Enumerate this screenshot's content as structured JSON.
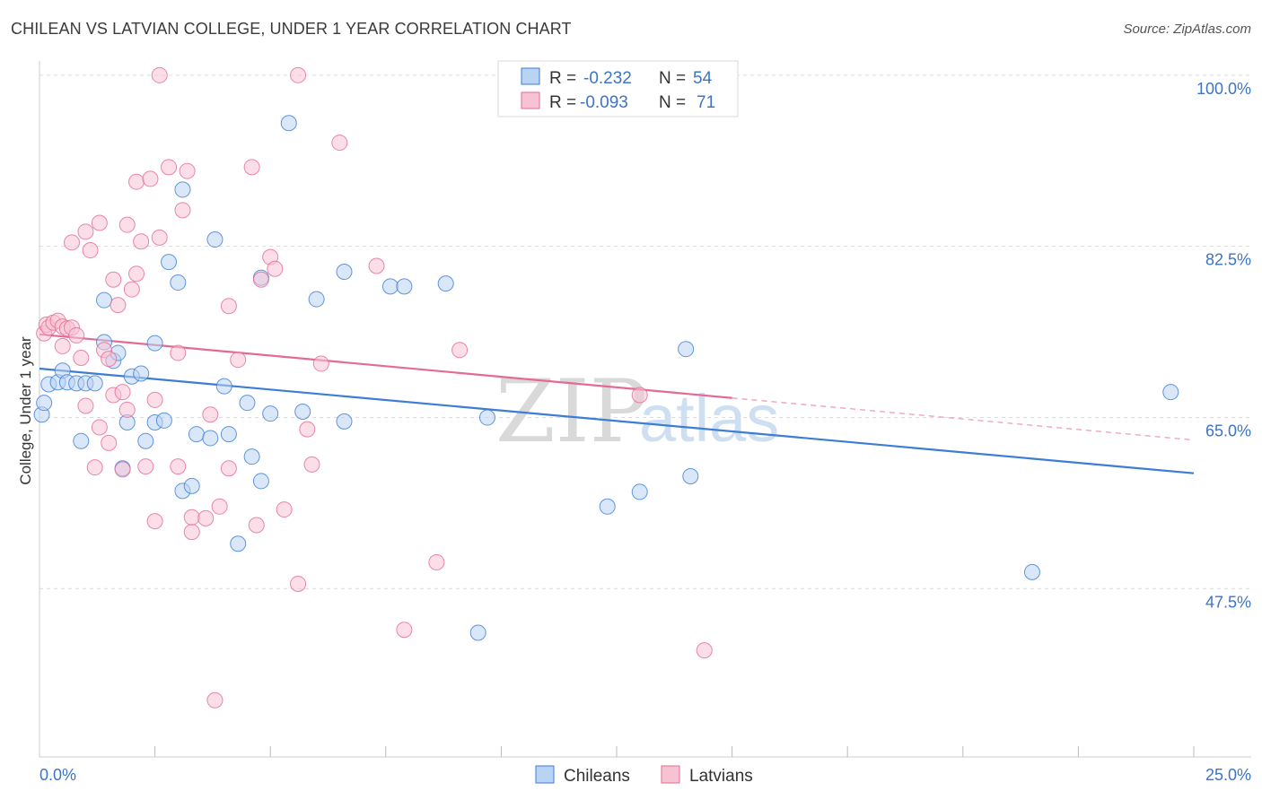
{
  "title": "CHILEAN VS LATVIAN COLLEGE, UNDER 1 YEAR CORRELATION CHART",
  "source": "Source: ZipAtlas.com",
  "watermark": {
    "zip": "ZIP",
    "atlas": "atlas"
  },
  "colors": {
    "chileans": "#3c7dd6",
    "latvians": "#e36b93",
    "chileans_fill": "#b9d3f2",
    "latvians_fill": "#f7c3d3",
    "tick": "#3c74c8"
  },
  "chart_data": {
    "type": "scatter",
    "title": "CHILEAN VS LATVIAN COLLEGE, UNDER 1 YEAR CORRELATION CHART",
    "xlabel": "",
    "ylabel": "College, Under 1 year",
    "xlim": [
      0,
      25
    ],
    "ylim": [
      30.3,
      102.0
    ],
    "x_tick_labels": [
      "0.0%",
      "25.0%"
    ],
    "x_tick_values": [
      0,
      25
    ],
    "y_tick_labels": [
      "100.0%",
      "82.5%",
      "65.0%",
      "47.5%"
    ],
    "y_tick_values": [
      100,
      82.5,
      65,
      47.5
    ],
    "grid": true,
    "legend_position": "top-center",
    "stats": [
      {
        "series": "Chileans",
        "r_label": "R =",
        "r": "-0.232",
        "n_label": "N =",
        "n": "54"
      },
      {
        "series": "Latvians",
        "r_label": "R =",
        "r": "-0.093",
        "n_label": "N =",
        "n": "71"
      }
    ],
    "series": [
      {
        "name": "Chileans",
        "trend": {
          "x": [
            0,
            25
          ],
          "y": [
            70.0,
            59.3
          ]
        },
        "points": [
          {
            "x": 0.2,
            "y": 68.4
          },
          {
            "x": 0.4,
            "y": 68.6
          },
          {
            "x": 0.5,
            "y": 69.8
          },
          {
            "x": 0.6,
            "y": 68.6
          },
          {
            "x": 0.8,
            "y": 68.5
          },
          {
            "x": 1.0,
            "y": 68.5
          },
          {
            "x": 1.2,
            "y": 68.5
          },
          {
            "x": 1.4,
            "y": 72.7
          },
          {
            "x": 1.4,
            "y": 77.0
          },
          {
            "x": 1.6,
            "y": 70.8
          },
          {
            "x": 1.7,
            "y": 71.6
          },
          {
            "x": 0.9,
            "y": 62.6
          },
          {
            "x": 1.8,
            "y": 59.8
          },
          {
            "x": 1.9,
            "y": 64.5
          },
          {
            "x": 2.0,
            "y": 69.2
          },
          {
            "x": 2.2,
            "y": 69.5
          },
          {
            "x": 2.3,
            "y": 62.6
          },
          {
            "x": 2.5,
            "y": 72.6
          },
          {
            "x": 2.5,
            "y": 64.5
          },
          {
            "x": 2.7,
            "y": 64.7
          },
          {
            "x": 2.8,
            "y": 80.9
          },
          {
            "x": 3.0,
            "y": 78.8
          },
          {
            "x": 3.1,
            "y": 88.3
          },
          {
            "x": 3.1,
            "y": 57.5
          },
          {
            "x": 3.3,
            "y": 58.0
          },
          {
            "x": 3.4,
            "y": 63.3
          },
          {
            "x": 3.7,
            "y": 62.9
          },
          {
            "x": 3.8,
            "y": 83.2
          },
          {
            "x": 4.0,
            "y": 68.2
          },
          {
            "x": 4.1,
            "y": 63.3
          },
          {
            "x": 4.3,
            "y": 52.1
          },
          {
            "x": 4.5,
            "y": 66.5
          },
          {
            "x": 4.6,
            "y": 61.0
          },
          {
            "x": 4.8,
            "y": 58.5
          },
          {
            "x": 4.8,
            "y": 79.3
          },
          {
            "x": 5.0,
            "y": 65.4
          },
          {
            "x": 5.4,
            "y": 95.1
          },
          {
            "x": 5.7,
            "y": 65.6
          },
          {
            "x": 6.0,
            "y": 77.1
          },
          {
            "x": 6.6,
            "y": 79.9
          },
          {
            "x": 6.6,
            "y": 64.6
          },
          {
            "x": 7.6,
            "y": 78.4
          },
          {
            "x": 7.9,
            "y": 78.4
          },
          {
            "x": 8.8,
            "y": 78.7
          },
          {
            "x": 9.5,
            "y": 43.0
          },
          {
            "x": 9.7,
            "y": 65.0
          },
          {
            "x": 12.3,
            "y": 55.9
          },
          {
            "x": 13.0,
            "y": 57.4
          },
          {
            "x": 14.0,
            "y": 72.0
          },
          {
            "x": 14.1,
            "y": 59.0
          },
          {
            "x": 21.5,
            "y": 49.2
          },
          {
            "x": 24.5,
            "y": 67.6
          },
          {
            "x": 0.05,
            "y": 65.3
          },
          {
            "x": 0.1,
            "y": 66.5
          }
        ]
      },
      {
        "name": "Latvians",
        "trend": {
          "x": [
            0,
            15
          ],
          "y": [
            73.5,
            67.0
          ]
        },
        "trend_dashed": {
          "x": [
            15,
            25
          ],
          "y": [
            67.0,
            62.7
          ]
        },
        "points": [
          {
            "x": 0.1,
            "y": 73.6
          },
          {
            "x": 0.15,
            "y": 74.5
          },
          {
            "x": 0.2,
            "y": 74.2
          },
          {
            "x": 0.3,
            "y": 74.7
          },
          {
            "x": 0.4,
            "y": 74.9
          },
          {
            "x": 0.5,
            "y": 74.3
          },
          {
            "x": 0.6,
            "y": 74.1
          },
          {
            "x": 0.7,
            "y": 74.2
          },
          {
            "x": 0.8,
            "y": 73.4
          },
          {
            "x": 0.5,
            "y": 72.3
          },
          {
            "x": 0.9,
            "y": 71.1
          },
          {
            "x": 1.0,
            "y": 66.2
          },
          {
            "x": 0.7,
            "y": 82.9
          },
          {
            "x": 1.0,
            "y": 84.0
          },
          {
            "x": 1.1,
            "y": 82.1
          },
          {
            "x": 1.2,
            "y": 59.9
          },
          {
            "x": 1.3,
            "y": 64.0
          },
          {
            "x": 1.3,
            "y": 84.9
          },
          {
            "x": 1.4,
            "y": 71.9
          },
          {
            "x": 1.5,
            "y": 71.0
          },
          {
            "x": 1.5,
            "y": 62.4
          },
          {
            "x": 1.6,
            "y": 67.3
          },
          {
            "x": 1.6,
            "y": 79.1
          },
          {
            "x": 1.7,
            "y": 76.5
          },
          {
            "x": 1.8,
            "y": 67.6
          },
          {
            "x": 1.8,
            "y": 59.7
          },
          {
            "x": 1.9,
            "y": 65.8
          },
          {
            "x": 1.9,
            "y": 84.7
          },
          {
            "x": 2.0,
            "y": 78.1
          },
          {
            "x": 2.1,
            "y": 79.7
          },
          {
            "x": 2.1,
            "y": 89.1
          },
          {
            "x": 2.2,
            "y": 83.0
          },
          {
            "x": 2.3,
            "y": 60.0
          },
          {
            "x": 2.4,
            "y": 89.4
          },
          {
            "x": 2.5,
            "y": 66.8
          },
          {
            "x": 2.5,
            "y": 54.4
          },
          {
            "x": 2.6,
            "y": 83.4
          },
          {
            "x": 2.6,
            "y": 100.0
          },
          {
            "x": 2.8,
            "y": 90.6
          },
          {
            "x": 3.0,
            "y": 60.0
          },
          {
            "x": 3.0,
            "y": 71.6
          },
          {
            "x": 3.1,
            "y": 86.2
          },
          {
            "x": 3.2,
            "y": 90.2
          },
          {
            "x": 3.3,
            "y": 53.3
          },
          {
            "x": 3.3,
            "y": 54.8
          },
          {
            "x": 3.6,
            "y": 54.7
          },
          {
            "x": 3.7,
            "y": 65.3
          },
          {
            "x": 3.8,
            "y": 36.1
          },
          {
            "x": 3.9,
            "y": 55.9
          },
          {
            "x": 4.1,
            "y": 76.4
          },
          {
            "x": 4.1,
            "y": 59.8
          },
          {
            "x": 4.3,
            "y": 70.9
          },
          {
            "x": 4.6,
            "y": 90.6
          },
          {
            "x": 4.7,
            "y": 54.0
          },
          {
            "x": 4.8,
            "y": 79.1
          },
          {
            "x": 5.0,
            "y": 81.4
          },
          {
            "x": 5.1,
            "y": 80.2
          },
          {
            "x": 5.3,
            "y": 55.6
          },
          {
            "x": 5.6,
            "y": 100.0
          },
          {
            "x": 5.6,
            "y": 48.0
          },
          {
            "x": 5.8,
            "y": 63.8
          },
          {
            "x": 5.9,
            "y": 60.2
          },
          {
            "x": 6.1,
            "y": 70.5
          },
          {
            "x": 6.5,
            "y": 93.1
          },
          {
            "x": 7.3,
            "y": 80.5
          },
          {
            "x": 7.9,
            "y": 43.3
          },
          {
            "x": 8.6,
            "y": 50.2
          },
          {
            "x": 9.1,
            "y": 71.9
          },
          {
            "x": 13.0,
            "y": 67.3
          },
          {
            "x": 14.4,
            "y": 41.2
          },
          {
            "x": 10.3,
            "y": 100.0
          }
        ]
      }
    ]
  }
}
